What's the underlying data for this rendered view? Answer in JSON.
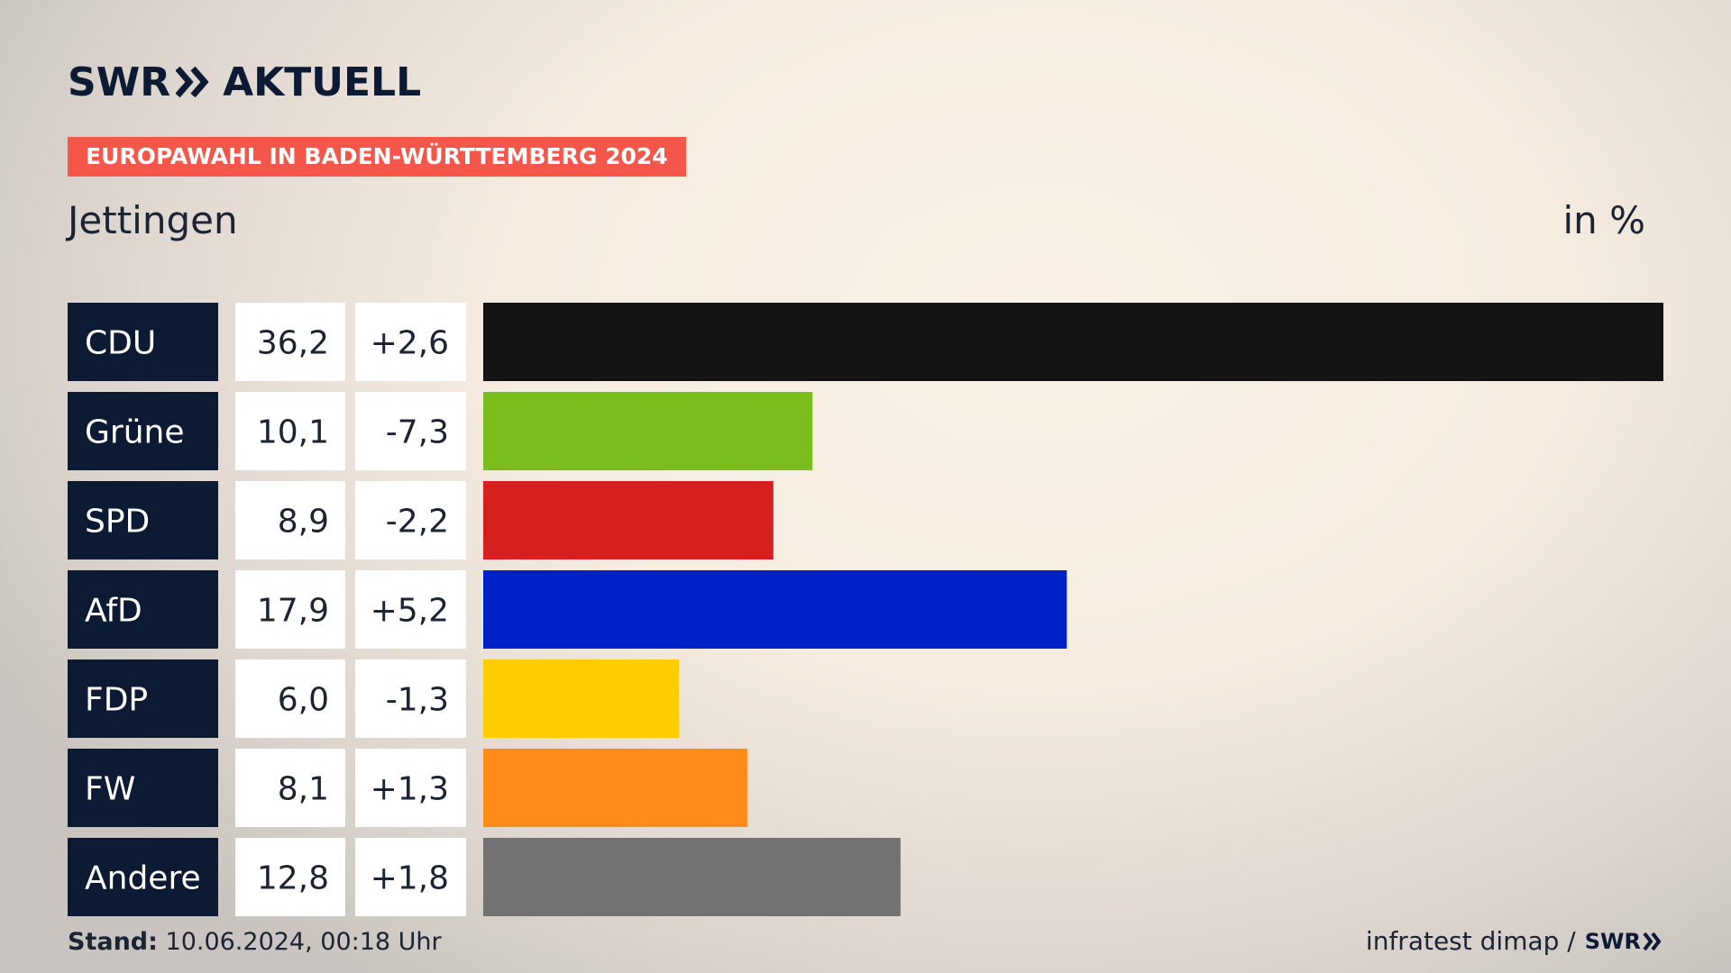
{
  "header": {
    "brand": "SWR",
    "product": "AKTUELL",
    "badge": "EUROPAWAHL IN BADEN-WÜRTTEMBERG 2024",
    "place": "Jettingen",
    "unit": "in %"
  },
  "footer": {
    "stand_label": "Stand:",
    "stand_value": "10.06.2024, 00:18 Uhr",
    "source": "infratest dimap /",
    "source_brand": "SWR"
  },
  "colors": {
    "label_bg": "#0c1b33",
    "value_bg": "#ffffff",
    "badge": "#f5564a"
  },
  "chart_data": {
    "type": "bar",
    "orientation": "horizontal",
    "categories": [
      "CDU",
      "Grüne",
      "SPD",
      "AfD",
      "FDP",
      "FW",
      "Andere"
    ],
    "values": [
      36.2,
      10.1,
      8.9,
      17.9,
      6.0,
      8.1,
      12.8
    ],
    "value_labels": [
      "36,2",
      "10,1",
      "8,9",
      "17,9",
      "6,0",
      "8,1",
      "12,8"
    ],
    "change_labels": [
      "+2,6",
      "-7,3",
      "-2,2",
      "+5,2",
      "-1,3",
      "+1,3",
      "+1,8"
    ],
    "changes": [
      2.6,
      -7.3,
      -2.2,
      5.2,
      -1.3,
      1.3,
      1.8
    ],
    "bar_colors": [
      "#141414",
      "#7cbd1e",
      "#d61f1f",
      "#0021c8",
      "#ffcc00",
      "#ff8c1a",
      "#727272"
    ],
    "xlim": [
      0,
      36.2
    ],
    "grid": false,
    "legend": "none"
  }
}
